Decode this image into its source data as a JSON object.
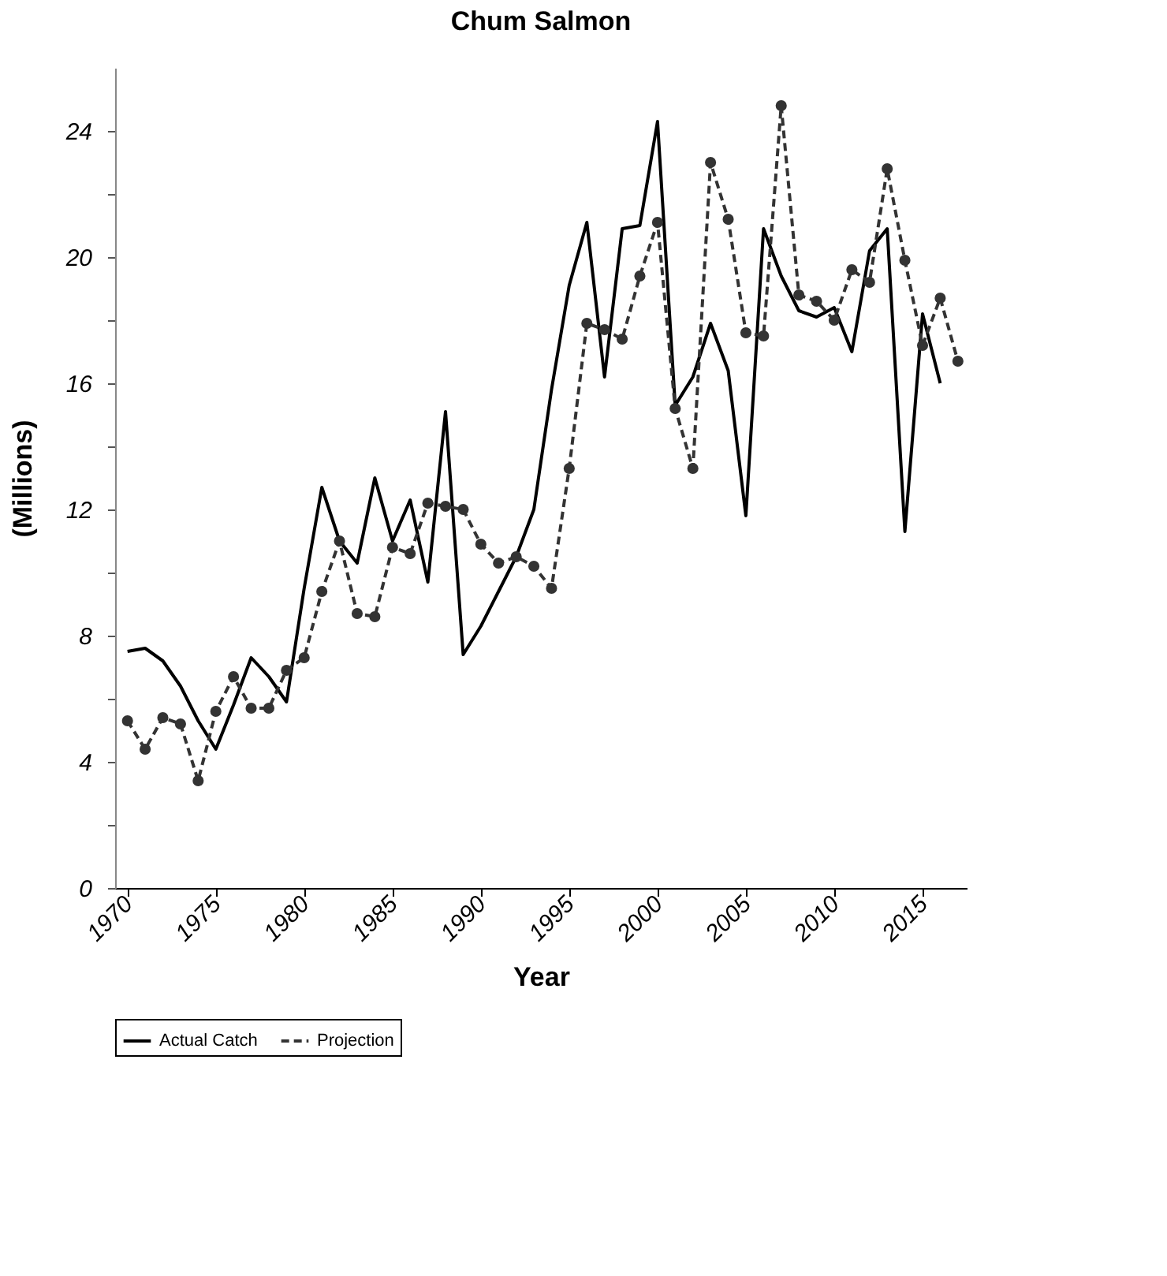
{
  "chart_data": {
    "type": "line",
    "title": "Chum Salmon",
    "xlabel": "Year",
    "ylabel": "(Millions)",
    "xlim": [
      1969.3,
      2017.5
    ],
    "xticks": [
      1970,
      1975,
      1980,
      1985,
      1990,
      1995,
      2000,
      2005,
      2010,
      2015
    ],
    "ylim": [
      0,
      26
    ],
    "yticks": [
      0,
      {
        "value": 2,
        "label": null
      },
      4,
      {
        "value": 6,
        "label": null
      },
      8,
      {
        "value": 10,
        "label": null
      },
      12,
      {
        "value": 14,
        "label": null
      },
      16,
      {
        "value": 18,
        "label": null
      },
      20,
      {
        "value": 22,
        "label": null
      },
      24
    ],
    "grid": false,
    "legend": "bottom",
    "series": [
      {
        "name": "Actual Catch",
        "color": "#000000",
        "marker": "none",
        "line_style": "solid",
        "x": [
          1970,
          1971,
          1972,
          1973,
          1974,
          1975,
          1976,
          1977,
          1978,
          1979,
          1980,
          1981,
          1982,
          1983,
          1984,
          1985,
          1986,
          1987,
          1988,
          1989,
          1990,
          1991,
          1992,
          1993,
          1994,
          1995,
          1996,
          1997,
          1998,
          1999,
          2000,
          2001,
          2002,
          2003,
          2004,
          2005,
          2006,
          2007,
          2008,
          2009,
          2010,
          2011,
          2012,
          2013,
          2014,
          2015,
          2016
        ],
        "values": [
          7.5,
          7.6,
          7.2,
          6.4,
          5.3,
          4.4,
          5.8,
          7.3,
          6.7,
          5.9,
          9.5,
          12.7,
          11.0,
          10.3,
          13.0,
          11.0,
          12.3,
          9.7,
          15.1,
          7.4,
          8.3,
          9.4,
          10.5,
          12.0,
          15.8,
          19.1,
          21.1,
          16.2,
          20.9,
          21.0,
          24.3,
          15.3,
          16.2,
          17.9,
          16.4,
          11.8,
          20.9,
          19.4,
          18.3,
          18.1,
          18.4,
          17.0,
          20.2,
          20.9,
          11.3,
          18.2,
          16.0
        ]
      },
      {
        "name": "Projection",
        "color": "#333333",
        "marker": "circle",
        "line_style": "dashed",
        "x": [
          1970,
          1971,
          1972,
          1973,
          1974,
          1975,
          1976,
          1977,
          1978,
          1979,
          1980,
          1981,
          1982,
          1983,
          1984,
          1985,
          1986,
          1987,
          1988,
          1989,
          1990,
          1991,
          1992,
          1993,
          1994,
          1995,
          1996,
          1997,
          1998,
          1999,
          2000,
          2001,
          2002,
          2003,
          2004,
          2005,
          2006,
          2007,
          2008,
          2009,
          2010,
          2011,
          2012,
          2013,
          2014,
          2015,
          2016,
          2017
        ],
        "values": [
          5.3,
          4.4,
          5.4,
          5.2,
          3.4,
          5.6,
          6.7,
          5.7,
          5.7,
          6.9,
          7.3,
          9.4,
          11.0,
          8.7,
          8.6,
          10.8,
          10.6,
          12.2,
          12.1,
          12.0,
          10.9,
          10.3,
          10.5,
          10.2,
          9.5,
          13.3,
          17.9,
          17.7,
          17.4,
          19.4,
          21.1,
          15.2,
          13.3,
          23.0,
          21.2,
          17.6,
          17.5,
          24.8,
          18.8,
          18.6,
          18.0,
          19.6,
          19.2,
          22.8,
          19.9,
          17.2,
          18.7,
          16.7
        ]
      }
    ]
  }
}
